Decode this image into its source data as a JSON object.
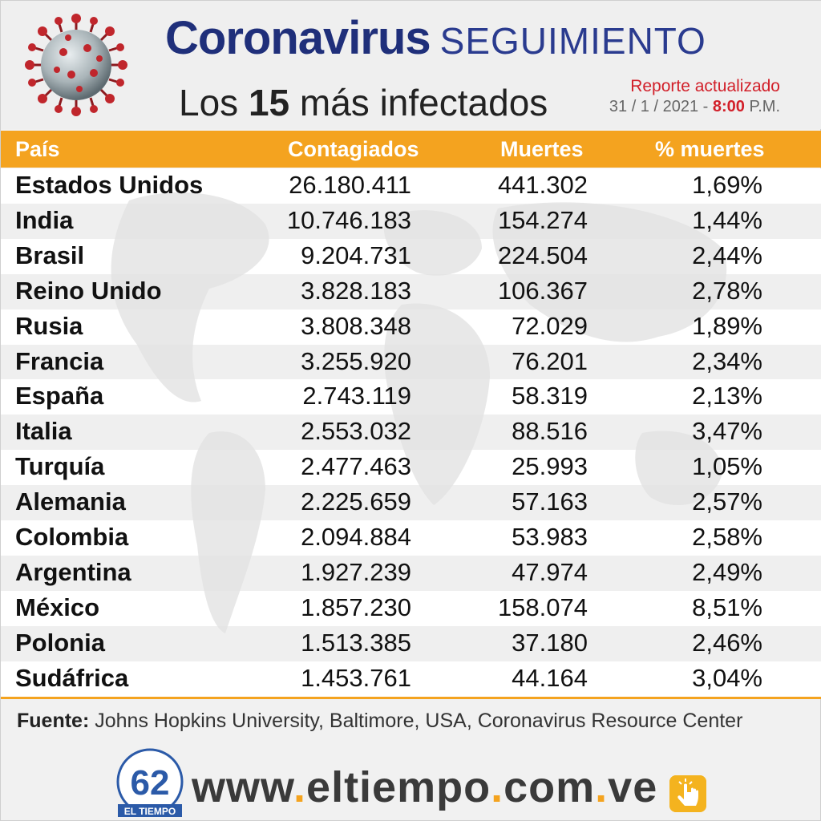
{
  "header": {
    "title_main": "Coronavirus",
    "title_secondary": "SEGUIMIENTO",
    "subtitle_prefix": "Los",
    "subtitle_number": "15",
    "subtitle_suffix": "más infectados",
    "report_label": "Reporte actualizado",
    "report_date": "31 / 1 / 2021 - ",
    "report_time": "8:00",
    "report_meridiem": " P.M."
  },
  "table": {
    "headers": [
      "País",
      "Contagiados",
      "Muertes",
      "% muertes"
    ],
    "rows": [
      {
        "country": "Estados Unidos",
        "cases": "26.180.411",
        "deaths": "441.302",
        "pct": "1,69%"
      },
      {
        "country": "India",
        "cases": "10.746.183",
        "deaths": "154.274",
        "pct": "1,44%"
      },
      {
        "country": "Brasil",
        "cases": "9.204.731",
        "deaths": "224.504",
        "pct": "2,44%"
      },
      {
        "country": "Reino Unido",
        "cases": "3.828.183",
        "deaths": "106.367",
        "pct": "2,78%"
      },
      {
        "country": "Rusia",
        "cases": "3.808.348",
        "deaths": "72.029",
        "pct": "1,89%"
      },
      {
        "country": "Francia",
        "cases": "3.255.920",
        "deaths": "76.201",
        "pct": "2,34%"
      },
      {
        "country": "España",
        "cases": "2.743.119",
        "deaths": "58.319",
        "pct": "2,13%"
      },
      {
        "country": "Italia",
        "cases": "2.553.032",
        "deaths": "88.516",
        "pct": "3,47%"
      },
      {
        "country": "Turquía",
        "cases": "2.477.463",
        "deaths": "25.993",
        "pct": "1,05%"
      },
      {
        "country": "Alemania",
        "cases": "2.225.659",
        "deaths": "57.163",
        "pct": "2,57%"
      },
      {
        "country": "Colombia",
        "cases": "2.094.884",
        "deaths": "53.983",
        "pct": "2,58%"
      },
      {
        "country": "Argentina",
        "cases": "1.927.239",
        "deaths": "47.974",
        "pct": "2,49%"
      },
      {
        "country": "México",
        "cases": "1.857.230",
        "deaths": "158.074",
        "pct": "8,51%"
      },
      {
        "country": "Polonia",
        "cases": "1.513.385",
        "deaths": "37.180",
        "pct": "2,46%"
      },
      {
        "country": "Sudáfrica",
        "cases": "1.453.761",
        "deaths": "44.164",
        "pct": "3,04%"
      }
    ]
  },
  "source": {
    "label": "Fuente:",
    "text": " Johns Hopkins University, Baltimore, USA, Coronavirus Resource Center"
  },
  "footer": {
    "url_parts": [
      "www",
      ".",
      "eltiempo",
      ".",
      "com",
      ".",
      "ve"
    ],
    "logo_number": "62",
    "logo_text": "EL TIEMPO"
  },
  "colors": {
    "accent": "#f4a31f",
    "title_blue": "#1f2f7a",
    "report_red": "#d2202a"
  },
  "icons": [
    "virus-icon",
    "logo-icon",
    "hand-tap-icon"
  ]
}
